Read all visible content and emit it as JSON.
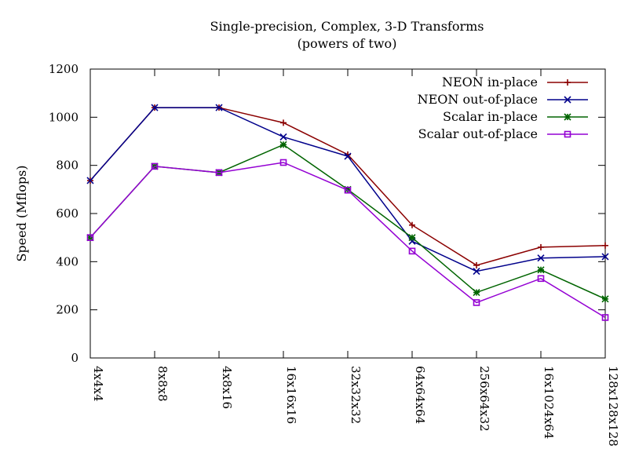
{
  "chart_data": {
    "type": "line",
    "title": "Single-precision, Complex, 3-D Transforms",
    "subtitle": "(powers of two)",
    "xlabel": "",
    "ylabel": "Speed (Mflops)",
    "ylim": [
      0,
      1200
    ],
    "yticks": [
      0,
      200,
      400,
      600,
      800,
      1000,
      1200
    ],
    "grid": false,
    "legend_position": "top-right",
    "categories": [
      "4x4x4",
      "8x8x8",
      "4x8x16",
      "16x16x16",
      "32x32x32",
      "64x64x64",
      "256x64x32",
      "16x1024x64",
      "128x128x128"
    ],
    "series": [
      {
        "name": "NEON in-place",
        "color": "#8b0000",
        "marker": "plus",
        "values": [
          737,
          1040,
          1040,
          977,
          845,
          552,
          385,
          460,
          467
        ]
      },
      {
        "name": "NEON out-of-place",
        "color": "#00008b",
        "marker": "cross",
        "values": [
          737,
          1040,
          1040,
          918,
          838,
          485,
          360,
          415,
          421
        ]
      },
      {
        "name": "Scalar in-place",
        "color": "#006400",
        "marker": "star",
        "values": [
          500,
          796,
          770,
          886,
          700,
          500,
          272,
          366,
          245
        ]
      },
      {
        "name": "Scalar out-of-place",
        "color": "#9400d3",
        "marker": "square",
        "values": [
          500,
          796,
          770,
          812,
          697,
          444,
          230,
          330,
          168
        ]
      }
    ]
  }
}
